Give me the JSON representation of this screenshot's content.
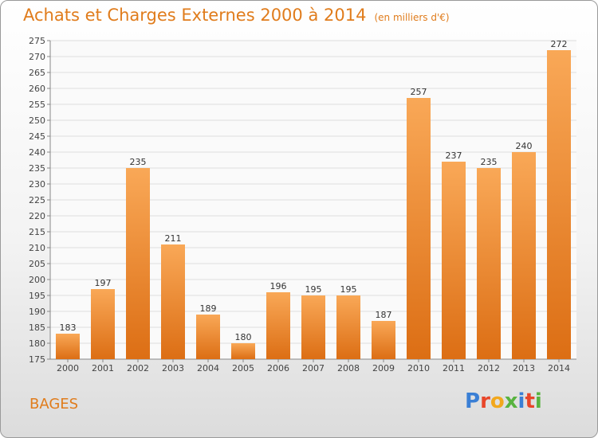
{
  "header": {
    "title": "Achats et Charges Externes 2000 à 2014",
    "subtitle": "(en milliers d'€)"
  },
  "footer": {
    "commune": "BAGES",
    "logo_letters": [
      "P",
      "r",
      "o",
      "x",
      "i",
      "t",
      "i"
    ],
    "logo_colors": [
      "#3a7fd5",
      "#e8462a",
      "#f2a81d",
      "#58b33f",
      "#3a7fd5",
      "#e8462a",
      "#58b33f"
    ]
  },
  "colors": {
    "bar_top": "#f9a857",
    "bar_bottom": "#dc6e14",
    "text_accent": "#e07c1c"
  },
  "chart_data": {
    "type": "bar",
    "title": "Achats et Charges Externes 2000 à 2014",
    "subtitle": "(en milliers d'€)",
    "xlabel": "",
    "ylabel": "",
    "categories": [
      "2000",
      "2001",
      "2002",
      "2003",
      "2004",
      "2005",
      "2006",
      "2007",
      "2008",
      "2009",
      "2010",
      "2011",
      "2012",
      "2013",
      "2014"
    ],
    "values": [
      183,
      197,
      235,
      211,
      189,
      180,
      196,
      195,
      195,
      187,
      257,
      237,
      235,
      240,
      272
    ],
    "ylim": [
      175,
      275
    ],
    "ytick_step": 5,
    "grid": true
  }
}
